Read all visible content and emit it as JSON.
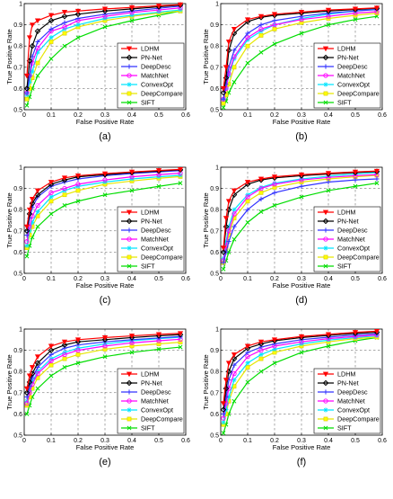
{
  "figure": {
    "legend_entries": [
      {
        "name": "LDHM",
        "color": "#ff0000",
        "marker": "triangle-down"
      },
      {
        "name": "PN-Net",
        "color": "#000000",
        "marker": "diamond"
      },
      {
        "name": "DeepDesc",
        "color": "#3333ff",
        "marker": "plus"
      },
      {
        "name": "MatchNet",
        "color": "#ff00ff",
        "marker": "circle"
      },
      {
        "name": "ConvexOpt",
        "color": "#00e5ff",
        "marker": "asterisk"
      },
      {
        "name": "DeepCompare",
        "color": "#ffff00",
        "marker": "square"
      },
      {
        "name": "SIFT",
        "color": "#00dd00",
        "marker": "x"
      }
    ]
  },
  "chart_data": [
    {
      "type": "line",
      "panel_label": "(a)",
      "xlabel": "False Positive Rate",
      "ylabel": "True Positive Rate",
      "xlim": [
        0,
        0.6
      ],
      "ylim": [
        0.5,
        1
      ],
      "xticks": [
        "0",
        "0.1",
        "0.2",
        "0.3",
        "0.4",
        "0.5",
        "0.6"
      ],
      "yticks": [
        "0.5",
        "0.6",
        "0.7",
        "0.8",
        "0.9",
        "1"
      ],
      "grid": true,
      "legend_position": "bottom-right",
      "x": [
        0.01,
        0.02,
        0.03,
        0.05,
        0.1,
        0.15,
        0.2,
        0.3,
        0.4,
        0.5,
        0.58
      ],
      "series": [
        {
          "name": "LDHM",
          "values": [
            0.66,
            0.84,
            0.9,
            0.92,
            0.945,
            0.96,
            0.965,
            0.975,
            0.982,
            0.99,
            0.995
          ]
        },
        {
          "name": "PN-Net",
          "values": [
            0.6,
            0.73,
            0.8,
            0.87,
            0.92,
            0.94,
            0.95,
            0.965,
            0.975,
            0.985,
            0.993
          ]
        },
        {
          "name": "DeepDesc",
          "values": [
            0.58,
            0.66,
            0.75,
            0.82,
            0.88,
            0.91,
            0.93,
            0.95,
            0.965,
            0.978,
            0.988
          ]
        },
        {
          "name": "MatchNet",
          "values": [
            0.58,
            0.66,
            0.72,
            0.79,
            0.87,
            0.89,
            0.92,
            0.94,
            0.958,
            0.97,
            0.98
          ]
        },
        {
          "name": "ConvexOpt",
          "values": [
            0.57,
            0.63,
            0.68,
            0.77,
            0.84,
            0.88,
            0.9,
            0.93,
            0.945,
            0.96,
            0.97
          ]
        },
        {
          "name": "DeepCompare",
          "values": [
            0.55,
            0.6,
            0.65,
            0.72,
            0.82,
            0.86,
            0.89,
            0.92,
            0.94,
            0.955,
            0.965
          ]
        },
        {
          "name": "SIFT",
          "values": [
            0.52,
            0.56,
            0.6,
            0.66,
            0.74,
            0.8,
            0.84,
            0.89,
            0.92,
            0.945,
            0.965
          ]
        }
      ]
    },
    {
      "type": "line",
      "panel_label": "(b)",
      "xlabel": "False Positive Rate",
      "ylabel": "True Positive Rate",
      "xlim": [
        0,
        0.6
      ],
      "ylim": [
        0.5,
        1
      ],
      "xticks": [
        "0",
        "0.1",
        "0.2",
        "0.3",
        "0.4",
        "0.5",
        "0.6"
      ],
      "yticks": [
        "0.5",
        "0.6",
        "0.7",
        "0.8",
        "0.9",
        "1"
      ],
      "grid": true,
      "legend_position": "bottom-right",
      "x": [
        0.01,
        0.02,
        0.03,
        0.05,
        0.1,
        0.15,
        0.2,
        0.3,
        0.4,
        0.5,
        0.58
      ],
      "series": [
        {
          "name": "LDHM",
          "values": [
            0.6,
            0.7,
            0.82,
            0.88,
            0.925,
            0.94,
            0.95,
            0.96,
            0.97,
            0.975,
            0.98
          ]
        },
        {
          "name": "PN-Net",
          "values": [
            0.58,
            0.65,
            0.78,
            0.86,
            0.915,
            0.935,
            0.945,
            0.955,
            0.965,
            0.972,
            0.978
          ]
        },
        {
          "name": "DeepDesc",
          "values": [
            0.55,
            0.62,
            0.7,
            0.78,
            0.86,
            0.9,
            0.92,
            0.94,
            0.955,
            0.965,
            0.972
          ]
        },
        {
          "name": "MatchNet",
          "values": [
            0.55,
            0.6,
            0.67,
            0.75,
            0.84,
            0.88,
            0.9,
            0.925,
            0.94,
            0.955,
            0.962
          ]
        },
        {
          "name": "ConvexOpt",
          "values": [
            0.55,
            0.6,
            0.66,
            0.74,
            0.83,
            0.87,
            0.9,
            0.93,
            0.95,
            0.965,
            0.975
          ]
        },
        {
          "name": "DeepCompare",
          "values": [
            0.53,
            0.57,
            0.62,
            0.7,
            0.8,
            0.85,
            0.88,
            0.91,
            0.93,
            0.945,
            0.955
          ]
        },
        {
          "name": "SIFT",
          "values": [
            0.51,
            0.54,
            0.58,
            0.63,
            0.72,
            0.77,
            0.81,
            0.86,
            0.9,
            0.925,
            0.94
          ]
        }
      ]
    },
    {
      "type": "line",
      "panel_label": "(c)",
      "xlabel": "False Positive Rate",
      "ylabel": "True Positive Rate",
      "xlim": [
        0,
        0.6
      ],
      "ylim": [
        0.5,
        1
      ],
      "xticks": [
        "0",
        "0.1",
        "0.2",
        "0.3",
        "0.4",
        "0.5",
        "0.6"
      ],
      "yticks": [
        "0.5",
        "0.6",
        "0.7",
        "0.8",
        "0.9",
        "1"
      ],
      "grid": true,
      "legend_position": "bottom-right",
      "x": [
        0.01,
        0.02,
        0.03,
        0.05,
        0.1,
        0.15,
        0.2,
        0.3,
        0.4,
        0.5,
        0.58
      ],
      "series": [
        {
          "name": "LDHM",
          "values": [
            0.72,
            0.8,
            0.85,
            0.89,
            0.93,
            0.95,
            0.96,
            0.97,
            0.978,
            0.985,
            0.99
          ]
        },
        {
          "name": "PN-Net",
          "values": [
            0.7,
            0.78,
            0.83,
            0.87,
            0.92,
            0.94,
            0.955,
            0.965,
            0.975,
            0.982,
            0.988
          ]
        },
        {
          "name": "DeepDesc",
          "values": [
            0.68,
            0.76,
            0.81,
            0.86,
            0.91,
            0.93,
            0.945,
            0.96,
            0.97,
            0.978,
            0.984
          ]
        },
        {
          "name": "MatchNet",
          "values": [
            0.65,
            0.72,
            0.77,
            0.82,
            0.88,
            0.9,
            0.92,
            0.94,
            0.955,
            0.965,
            0.972
          ]
        },
        {
          "name": "ConvexOpt",
          "values": [
            0.63,
            0.7,
            0.74,
            0.79,
            0.86,
            0.89,
            0.91,
            0.93,
            0.945,
            0.955,
            0.962
          ]
        },
        {
          "name": "DeepCompare",
          "values": [
            0.62,
            0.68,
            0.72,
            0.77,
            0.84,
            0.87,
            0.89,
            0.92,
            0.935,
            0.948,
            0.956
          ]
        },
        {
          "name": "SIFT",
          "values": [
            0.58,
            0.63,
            0.67,
            0.72,
            0.78,
            0.82,
            0.84,
            0.87,
            0.89,
            0.91,
            0.925
          ]
        }
      ]
    },
    {
      "type": "line",
      "panel_label": "(d)",
      "xlabel": "False Positive Rate",
      "ylabel": "True Positive Rate",
      "xlim": [
        0,
        0.6
      ],
      "ylim": [
        0.5,
        1
      ],
      "xticks": [
        "0",
        "0.1",
        "0.2",
        "0.3",
        "0.4",
        "0.5",
        "0.6"
      ],
      "yticks": [
        "0.5",
        "0.6",
        "0.7",
        "0.8",
        "0.9",
        "1"
      ],
      "grid": true,
      "legend_position": "bottom-right",
      "x": [
        0.01,
        0.02,
        0.03,
        0.05,
        0.1,
        0.15,
        0.2,
        0.3,
        0.4,
        0.5,
        0.58
      ],
      "series": [
        {
          "name": "LDHM",
          "values": [
            0.62,
            0.76,
            0.84,
            0.89,
            0.93,
            0.945,
            0.955,
            0.965,
            0.972,
            0.978,
            0.982
          ]
        },
        {
          "name": "PN-Net",
          "values": [
            0.6,
            0.72,
            0.8,
            0.87,
            0.92,
            0.94,
            0.95,
            0.96,
            0.968,
            0.975,
            0.98
          ]
        },
        {
          "name": "DeepDesc",
          "values": [
            0.55,
            0.6,
            0.65,
            0.72,
            0.8,
            0.85,
            0.88,
            0.91,
            0.93,
            0.94,
            0.945
          ]
        },
        {
          "name": "MatchNet",
          "values": [
            0.56,
            0.63,
            0.7,
            0.78,
            0.86,
            0.9,
            0.92,
            0.94,
            0.952,
            0.96,
            0.965
          ]
        },
        {
          "name": "ConvexOpt",
          "values": [
            0.57,
            0.65,
            0.72,
            0.8,
            0.87,
            0.905,
            0.925,
            0.945,
            0.958,
            0.968,
            0.975
          ]
        },
        {
          "name": "DeepCompare",
          "values": [
            0.55,
            0.62,
            0.68,
            0.76,
            0.84,
            0.88,
            0.905,
            0.93,
            0.945,
            0.955,
            0.962
          ]
        },
        {
          "name": "SIFT",
          "values": [
            0.52,
            0.56,
            0.6,
            0.66,
            0.74,
            0.79,
            0.82,
            0.86,
            0.89,
            0.91,
            0.925
          ]
        }
      ]
    },
    {
      "type": "line",
      "panel_label": "(e)",
      "xlabel": "False Positive Rate",
      "ylabel": "True Positive Rate",
      "xlim": [
        0,
        0.6
      ],
      "ylim": [
        0.5,
        1
      ],
      "xticks": [
        "0",
        "0.1",
        "0.2",
        "0.3",
        "0.4",
        "0.5",
        "0.6"
      ],
      "yticks": [
        "0.5",
        "0.6",
        "0.7",
        "0.8",
        "0.9",
        "1"
      ],
      "grid": true,
      "legend_position": "bottom-right",
      "x": [
        0.01,
        0.02,
        0.03,
        0.05,
        0.1,
        0.15,
        0.2,
        0.3,
        0.4,
        0.5,
        0.58
      ],
      "series": [
        {
          "name": "LDHM",
          "values": [
            0.72,
            0.78,
            0.82,
            0.87,
            0.92,
            0.94,
            0.95,
            0.96,
            0.968,
            0.975,
            0.98
          ]
        },
        {
          "name": "PN-Net",
          "values": [
            0.7,
            0.75,
            0.79,
            0.84,
            0.9,
            0.925,
            0.94,
            0.95,
            0.96,
            0.968,
            0.974
          ]
        },
        {
          "name": "DeepDesc",
          "values": [
            0.68,
            0.73,
            0.77,
            0.82,
            0.88,
            0.91,
            0.925,
            0.94,
            0.95,
            0.958,
            0.965
          ]
        },
        {
          "name": "MatchNet",
          "values": [
            0.65,
            0.7,
            0.74,
            0.79,
            0.85,
            0.88,
            0.9,
            0.92,
            0.935,
            0.945,
            0.952
          ]
        },
        {
          "name": "ConvexOpt",
          "values": [
            0.66,
            0.71,
            0.75,
            0.8,
            0.86,
            0.89,
            0.91,
            0.93,
            0.945,
            0.955,
            0.962
          ]
        },
        {
          "name": "DeepCompare",
          "values": [
            0.64,
            0.68,
            0.72,
            0.77,
            0.83,
            0.86,
            0.88,
            0.905,
            0.92,
            0.93,
            0.938
          ]
        },
        {
          "name": "SIFT",
          "values": [
            0.6,
            0.64,
            0.68,
            0.72,
            0.78,
            0.82,
            0.84,
            0.87,
            0.89,
            0.905,
            0.915
          ]
        }
      ]
    },
    {
      "type": "line",
      "panel_label": "(f)",
      "xlabel": "False Positive Rate",
      "ylabel": "True Positive Rate",
      "xlim": [
        0,
        0.6
      ],
      "ylim": [
        0.5,
        1
      ],
      "xticks": [
        "0",
        "0.1",
        "0.2",
        "0.3",
        "0.4",
        "0.5",
        "0.6"
      ],
      "yticks": [
        "0.5",
        "0.6",
        "0.7",
        "0.8",
        "0.9",
        "1"
      ],
      "grid": true,
      "legend_position": "bottom-right",
      "x": [
        0.01,
        0.02,
        0.03,
        0.05,
        0.1,
        0.15,
        0.2,
        0.3,
        0.4,
        0.5,
        0.58
      ],
      "series": [
        {
          "name": "LDHM",
          "values": [
            0.65,
            0.76,
            0.84,
            0.88,
            0.92,
            0.94,
            0.95,
            0.965,
            0.975,
            0.985,
            0.99
          ]
        },
        {
          "name": "PN-Net",
          "values": [
            0.62,
            0.72,
            0.8,
            0.86,
            0.91,
            0.93,
            0.945,
            0.96,
            0.97,
            0.98,
            0.985
          ]
        },
        {
          "name": "DeepDesc",
          "values": [
            0.6,
            0.68,
            0.76,
            0.83,
            0.89,
            0.915,
            0.93,
            0.95,
            0.962,
            0.972,
            0.978
          ]
        },
        {
          "name": "MatchNet",
          "values": [
            0.58,
            0.65,
            0.72,
            0.79,
            0.87,
            0.9,
            0.92,
            0.94,
            0.955,
            0.965,
            0.972
          ]
        },
        {
          "name": "ConvexOpt",
          "values": [
            0.56,
            0.62,
            0.68,
            0.76,
            0.84,
            0.88,
            0.905,
            0.93,
            0.948,
            0.96,
            0.968
          ]
        },
        {
          "name": "DeepCompare",
          "values": [
            0.55,
            0.6,
            0.66,
            0.73,
            0.82,
            0.86,
            0.89,
            0.92,
            0.94,
            0.955,
            0.962
          ]
        },
        {
          "name": "SIFT",
          "values": [
            0.51,
            0.55,
            0.6,
            0.66,
            0.75,
            0.8,
            0.84,
            0.89,
            0.92,
            0.945,
            0.96
          ]
        }
      ]
    }
  ]
}
